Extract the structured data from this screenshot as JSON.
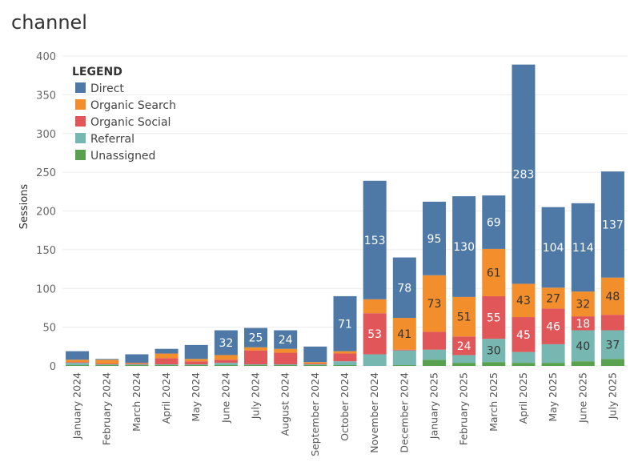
{
  "chart_data": {
    "type": "bar",
    "stacked": true,
    "title": "channel",
    "xlabel": "",
    "ylabel": "Sessions",
    "ylim": [
      0,
      400
    ],
    "yticks": [
      0,
      50,
      100,
      150,
      200,
      250,
      300,
      350,
      400
    ],
    "grid": true,
    "legend_title": "LEGEND",
    "legend_position": "top-left",
    "categories": [
      "January 2024",
      "February 2024",
      "March 2024",
      "April 2024",
      "May 2024",
      "June 2024",
      "July 2024",
      "August 2024",
      "September 2024",
      "October 2024",
      "November 2024",
      "December 2024",
      "January 2025",
      "February 2025",
      "March 2025",
      "April 2025",
      "May 2025",
      "June 2025",
      "July 2025"
    ],
    "series": [
      {
        "name": "Unassigned",
        "color": "#59a14f",
        "values": [
          1,
          1,
          1,
          1,
          1,
          1,
          1,
          1,
          1,
          1,
          0,
          1,
          8,
          4,
          5,
          4,
          4,
          6,
          9
        ]
      },
      {
        "name": "Referral",
        "color": "#76b7b2",
        "values": [
          3,
          1,
          1,
          1,
          1,
          3,
          1,
          1,
          1,
          5,
          15,
          19,
          13,
          10,
          30,
          14,
          24,
          40,
          37
        ]
      },
      {
        "name": "Organic Social",
        "color": "#e15759",
        "values": [
          1,
          1,
          1,
          8,
          4,
          4,
          18,
          15,
          1,
          10,
          53,
          1,
          23,
          24,
          55,
          45,
          46,
          18,
          20
        ]
      },
      {
        "name": "Organic Search",
        "color": "#f28e2b",
        "values": [
          3,
          5,
          1,
          6,
          3,
          6,
          4,
          5,
          2,
          3,
          18,
          41,
          73,
          51,
          61,
          43,
          27,
          32,
          48
        ]
      },
      {
        "name": "Direct",
        "color": "#4e79a7",
        "values": [
          11,
          1,
          11,
          6,
          18,
          32,
          25,
          24,
          20,
          71,
          153,
          78,
          95,
          130,
          69,
          283,
          104,
          114,
          137
        ]
      }
    ],
    "value_labels": {
      "Direct": [
        null,
        null,
        null,
        null,
        null,
        "32",
        "25",
        "24",
        null,
        "71",
        "153",
        "78",
        "95",
        "130",
        "69",
        "283",
        "104",
        "114",
        "137"
      ],
      "Organic Search": [
        null,
        null,
        null,
        null,
        null,
        null,
        null,
        null,
        null,
        null,
        null,
        "41",
        "73",
        "51",
        "61",
        "43",
        "27",
        "32",
        "48"
      ],
      "Organic Social": [
        null,
        null,
        null,
        null,
        null,
        null,
        null,
        null,
        null,
        null,
        "53",
        null,
        null,
        "24",
        "55",
        "45",
        "46",
        "18",
        null
      ],
      "Referral": [
        null,
        null,
        null,
        null,
        null,
        null,
        null,
        null,
        null,
        null,
        null,
        null,
        null,
        null,
        "30",
        null,
        null,
        "40",
        "37"
      ],
      "Unassigned": [
        null,
        null,
        null,
        null,
        null,
        null,
        null,
        null,
        null,
        null,
        null,
        null,
        null,
        null,
        null,
        null,
        null,
        null,
        null
      ]
    },
    "legend_order": [
      "Direct",
      "Organic Search",
      "Organic Social",
      "Referral",
      "Unassigned"
    ]
  }
}
